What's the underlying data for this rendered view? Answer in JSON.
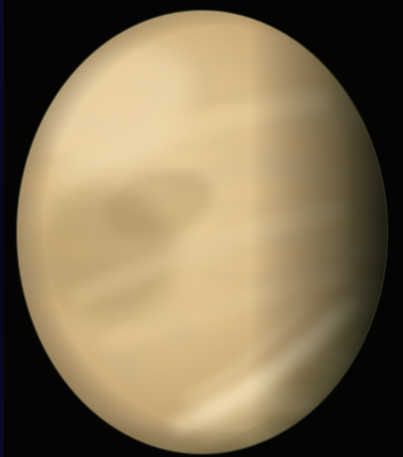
{
  "image": {
    "subject": "planet-venus",
    "colors": {
      "background": "#050403",
      "highlight": "#f6e3b8",
      "mid": "#d9b984",
      "shadow": "#7c6a45",
      "terminator": "#1e2618"
    }
  }
}
